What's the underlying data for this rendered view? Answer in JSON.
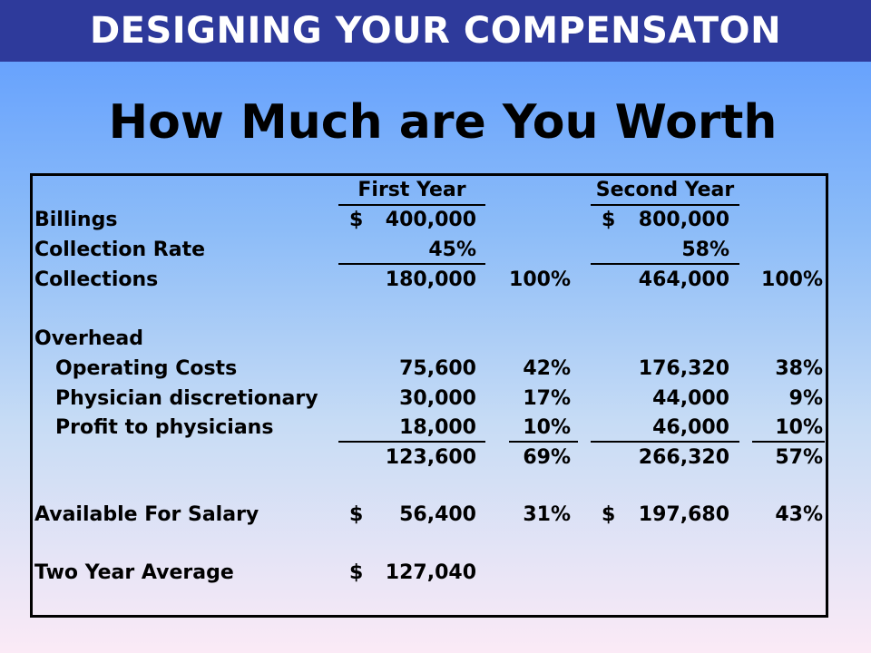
{
  "header": {
    "banner_title": "DESIGNING YOUR COMPENSATON",
    "title": "How Much are You Worth"
  },
  "chart_data": {
    "type": "table",
    "columns": [
      "",
      "First Year",
      "",
      "Second Year",
      ""
    ],
    "currency_symbol": "$",
    "rows": [
      {
        "label": "Billings",
        "dollar1": "$",
        "year1": "400,000",
        "pct1": "",
        "dollar2": "$",
        "year2": "800,000",
        "pct2": ""
      },
      {
        "label": "Collection Rate",
        "dollar1": "",
        "year1": "45%",
        "pct1": "",
        "dollar2": "",
        "year2": "58%",
        "pct2": ""
      },
      {
        "label": "Collections",
        "dollar1": "",
        "year1": "180,000",
        "pct1": "100%",
        "dollar2": "",
        "year2": "464,000",
        "pct2": "100%"
      },
      {
        "label": "Overhead",
        "dollar1": "",
        "year1": "",
        "pct1": "",
        "dollar2": "",
        "year2": "",
        "pct2": ""
      },
      {
        "label": "Operating Costs",
        "dollar1": "",
        "year1": "75,600",
        "pct1": "42%",
        "dollar2": "",
        "year2": "176,320",
        "pct2": "38%"
      },
      {
        "label": "Physician discretionary",
        "dollar1": "",
        "year1": "30,000",
        "pct1": "17%",
        "dollar2": "",
        "year2": "44,000",
        "pct2": "9%"
      },
      {
        "label": "Profit to physicians",
        "dollar1": "",
        "year1": "18,000",
        "pct1": "10%",
        "dollar2": "",
        "year2": "46,000",
        "pct2": "10%"
      },
      {
        "label": "",
        "dollar1": "",
        "year1": "123,600",
        "pct1": "69%",
        "dollar2": "",
        "year2": "266,320",
        "pct2": "57%"
      },
      {
        "label": "Available For Salary",
        "dollar1": "$",
        "year1": "56,400",
        "pct1": "31%",
        "dollar2": "$",
        "year2": "197,680",
        "pct2": "43%"
      },
      {
        "label": "Two Year Average",
        "dollar1": "$",
        "year1": "127,040",
        "pct1": "",
        "dollar2": "",
        "year2": "",
        "pct2": ""
      }
    ]
  }
}
